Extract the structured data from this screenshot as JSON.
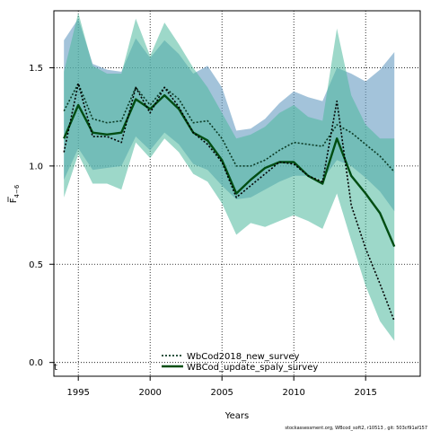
{
  "chart_data": {
    "type": "line",
    "xlabel": "Years",
    "ylabel_main": "F",
    "ylabel_sub": "4−6",
    "xlim": [
      1993.3,
      2018.8
    ],
    "ylim": [
      -0.07,
      1.79
    ],
    "x_ticks": [
      1995,
      2000,
      2005,
      2010,
      2015
    ],
    "y_ticks": [
      0.0,
      0.5,
      1.0,
      1.5
    ],
    "y_tick_labels": [
      "0.0",
      "0.5",
      "1.0",
      "1.5"
    ],
    "grid": true,
    "legend_position": "bottom-center",
    "corner_mark": "t",
    "footer_text": "stockassessment.org, WBcod_soft2, r10513 , git: 503cf91af157",
    "series": [
      {
        "name": "WbCod2018_new_survey",
        "line_style": "dotted",
        "line_color": "#0a3a24",
        "band_color": "#6b9ec4",
        "band_opacity": 0.62,
        "x": [
          1994,
          1995,
          1996,
          1997,
          1998,
          1999,
          2000,
          2001,
          2002,
          2003,
          2004,
          2005,
          2006,
          2007,
          2008,
          2009,
          2010,
          2011,
          2012,
          2013,
          2014,
          2015,
          2016,
          2017
        ],
        "values": [
          1.28,
          1.42,
          1.24,
          1.22,
          1.23,
          1.4,
          1.31,
          1.4,
          1.34,
          1.22,
          1.23,
          1.14,
          1.0,
          1.0,
          1.03,
          1.08,
          1.12,
          1.11,
          1.1,
          1.21,
          1.17,
          1.11,
          1.05,
          0.97
        ],
        "lower": [
          0.93,
          1.09,
          0.98,
          0.99,
          1.0,
          1.15,
          1.08,
          1.17,
          1.11,
          1.01,
          0.98,
          0.9,
          0.83,
          0.84,
          0.88,
          0.92,
          0.95,
          0.95,
          0.93,
          1.03,
          1.0,
          0.94,
          0.87,
          0.77
        ],
        "upper": [
          1.64,
          1.75,
          1.52,
          1.49,
          1.48,
          1.65,
          1.55,
          1.64,
          1.57,
          1.47,
          1.51,
          1.4,
          1.18,
          1.19,
          1.24,
          1.32,
          1.38,
          1.35,
          1.33,
          1.5,
          1.47,
          1.43,
          1.49,
          1.58
        ]
      },
      {
        "name": "WBCod_update_spaly_survey",
        "line_style": "solid",
        "line_color": "#004d12",
        "band_color": "#4db89d",
        "band_opacity": 0.55,
        "x": [
          1994,
          1995,
          1996,
          1997,
          1998,
          1999,
          2000,
          2001,
          2002,
          2003,
          2004,
          2005,
          2006,
          2007,
          2008,
          2009,
          2010,
          2011,
          2012,
          2013,
          2014,
          2015,
          2016,
          2017
        ],
        "values": [
          1.14,
          1.31,
          1.17,
          1.16,
          1.17,
          1.34,
          1.29,
          1.36,
          1.29,
          1.17,
          1.13,
          1.03,
          0.86,
          0.93,
          0.99,
          1.02,
          1.02,
          0.95,
          0.91,
          1.14,
          0.95,
          0.86,
          0.76,
          0.59
        ],
        "lower": [
          0.84,
          1.06,
          0.91,
          0.91,
          0.88,
          1.12,
          1.04,
          1.14,
          1.07,
          0.96,
          0.92,
          0.81,
          0.65,
          0.71,
          0.69,
          0.72,
          0.75,
          0.72,
          0.68,
          0.86,
          0.62,
          0.39,
          0.21,
          0.11
        ],
        "upper": [
          1.48,
          1.78,
          1.51,
          1.47,
          1.47,
          1.75,
          1.56,
          1.73,
          1.62,
          1.5,
          1.4,
          1.27,
          1.14,
          1.16,
          1.2,
          1.27,
          1.31,
          1.25,
          1.23,
          1.7,
          1.36,
          1.21,
          1.14,
          1.14
        ]
      },
      {
        "name": "",
        "line_style": "dotted",
        "line_color": "#000000",
        "x": [
          1994,
          1995,
          1996,
          1997,
          1998,
          1999,
          2000,
          2001,
          2002,
          2003,
          2004,
          2005,
          2006,
          2007,
          2008,
          2009,
          2010,
          2011,
          2012,
          2013,
          2014,
          2015,
          2016,
          2017
        ],
        "values": [
          1.07,
          1.42,
          1.15,
          1.15,
          1.12,
          1.4,
          1.27,
          1.4,
          1.3,
          1.17,
          1.11,
          1.02,
          0.84,
          0.9,
          0.96,
          1.02,
          1.01,
          0.95,
          0.92,
          1.33,
          0.8,
          0.58,
          0.4,
          0.21
        ]
      }
    ]
  }
}
